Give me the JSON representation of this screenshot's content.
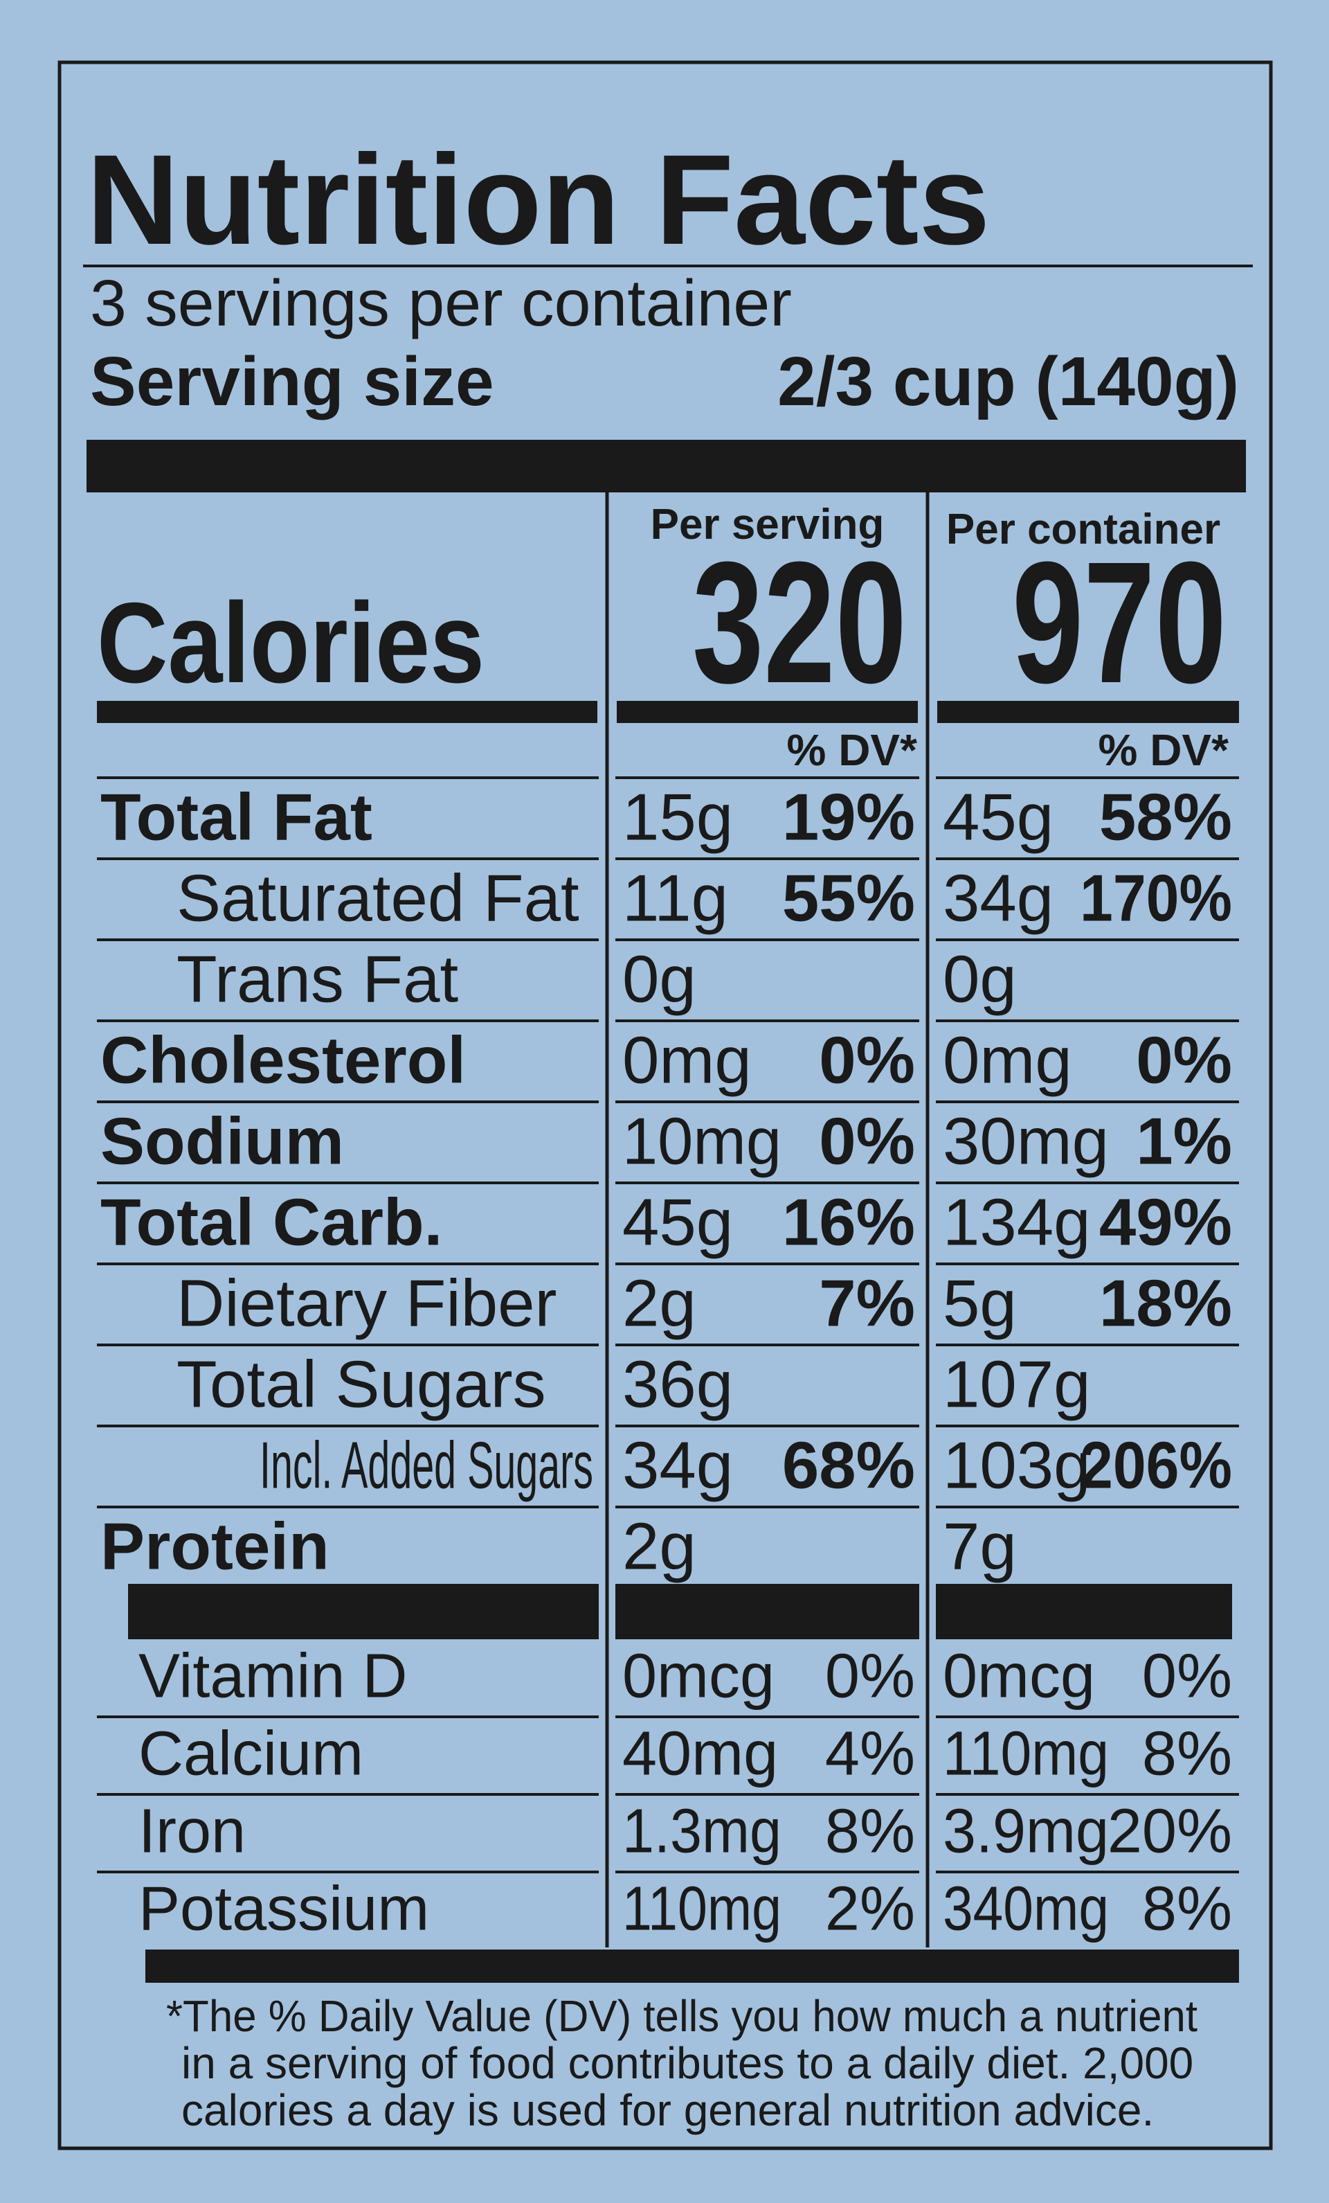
{
  "title": "Nutrition Facts",
  "servings": "3 servings per container",
  "serving_size": {
    "label": "Serving size",
    "value": "2/3 cup  (140g)"
  },
  "columns": [
    "Per serving",
    "Per container"
  ],
  "calories": {
    "label": "Calories",
    "per_serving": "320",
    "per_container": "970"
  },
  "dv_header": "% DV*",
  "rows": [
    {
      "name": "Total Fat",
      "level": 0,
      "bold": true,
      "per_serving": "15g",
      "per_serving_dv": "19%",
      "per_container": "45g",
      "per_container_dv": "58%"
    },
    {
      "name": "Saturated Fat",
      "level": 1,
      "bold": false,
      "per_serving": "11g",
      "per_serving_dv": "55%",
      "per_container": "34g",
      "per_container_dv": "170%"
    },
    {
      "name": "Trans Fat",
      "level": 1,
      "bold": false,
      "per_serving": "0g",
      "per_container": "0g"
    },
    {
      "name": "Cholesterol",
      "level": 0,
      "bold": true,
      "per_serving": "0mg",
      "per_serving_dv": "0%",
      "per_container": "0mg",
      "per_container_dv": "0%"
    },
    {
      "name": "Sodium",
      "level": 0,
      "bold": true,
      "per_serving": "10mg",
      "per_serving_dv": "0%",
      "per_container": "30mg",
      "per_container_dv": "1%"
    },
    {
      "name": "Total Carb.",
      "level": 0,
      "bold": true,
      "per_serving": "45g",
      "per_serving_dv": "16%",
      "per_container": "134g",
      "per_container_dv": "49%"
    },
    {
      "name": "Dietary Fiber",
      "level": 1,
      "bold": false,
      "per_serving": "2g",
      "per_serving_dv": "7%",
      "per_container": "5g",
      "per_container_dv": "18%"
    },
    {
      "name": "Total Sugars",
      "level": 1,
      "bold": false,
      "per_serving": "36g",
      "per_container": "107g"
    },
    {
      "name": "Incl. Added Sugars",
      "level": 2,
      "bold": false,
      "per_serving": "34g",
      "per_serving_dv": "68%",
      "per_container": "103g",
      "per_container_dv": "206%"
    },
    {
      "name": "Protein",
      "level": 0,
      "bold": true,
      "per_serving": "2g",
      "per_container": "7g"
    }
  ],
  "vitamins": [
    {
      "name": "Vitamin D",
      "per_serving": "0mcg",
      "per_serving_dv": "0%",
      "per_container": "0mcg",
      "per_container_dv": "0%"
    },
    {
      "name": "Calcium",
      "per_serving": "40mg",
      "per_serving_dv": "4%",
      "per_container": "110mg",
      "per_container_dv": "8%"
    },
    {
      "name": "Iron",
      "per_serving": "1.3mg",
      "per_serving_dv": "8%",
      "per_container": "3.9mg",
      "per_container_dv": "20%"
    },
    {
      "name": "Potassium",
      "per_serving": "110mg",
      "per_serving_dv": "2%",
      "per_container": "340mg",
      "per_container_dv": "8%"
    }
  ],
  "footnote": [
    "*The % Daily Value (DV) tells you how much a nutrient",
    "in a serving of food contributes to a daily diet. 2,000",
    "calories a day is used for general nutrition advice."
  ]
}
